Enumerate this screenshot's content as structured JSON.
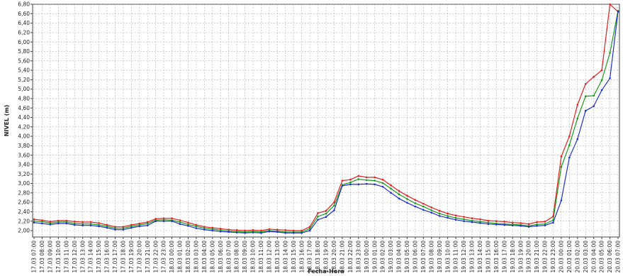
{
  "chart_data": {
    "type": "line",
    "title": "",
    "xlabel": "Fecha-Hora",
    "ylabel": "NIVEL (m)",
    "ylim": [
      2.0,
      6.8
    ],
    "yticks": [
      "2,00",
      "2,20",
      "2,40",
      "2,60",
      "2,80",
      "3,00",
      "3,20",
      "3,40",
      "3,60",
      "3,80",
      "4,00",
      "4,20",
      "4,40",
      "4,60",
      "4,80",
      "5,00",
      "5,20",
      "5,40",
      "5,60",
      "5,80",
      "6,00",
      "6,20",
      "6,40",
      "6,60",
      "6,80"
    ],
    "grid": true,
    "legend": "none",
    "categories": [
      "17.03 07:00",
      "17.03 08:00",
      "17.03 09:00",
      "17.03 10:00",
      "17.03 11:00",
      "17.03 12:00",
      "17.03 13:00",
      "17.03 14:00",
      "17.03 15:00",
      "17.03 16:00",
      "17.03 17:00",
      "17.03 18:00",
      "17.03 19:00",
      "17.03 20:00",
      "17.03 21:00",
      "17.03 22:00",
      "17.03 23:00",
      "18.03 00:00",
      "18.03 01:00",
      "18.03 02:00",
      "18.03 03:00",
      "18.03 04:00",
      "18.03 05:00",
      "18.03 06:00",
      "18.03 07:00",
      "18.03 08:00",
      "18.03 09:00",
      "18.03 10:00",
      "18.03 11:00",
      "18.03 12:00",
      "18.03 13:00",
      "18.03 14:00",
      "18.03 15:00",
      "18.03 16:00",
      "18.03 17:00",
      "18.03 18:00",
      "18.03 19:00",
      "18.03 20:00",
      "18.03 21:00",
      "18.03 22:00",
      "18.03 23:00",
      "19.03 00:00",
      "19.03 01:00",
      "19.03 02:00",
      "19.03 03:00",
      "19.03 04:00",
      "19.03 05:00",
      "19.03 06:00",
      "19.03 07:00",
      "19.03 08:00",
      "19.03 09:00",
      "19.03 10:00",
      "19.03 11:00",
      "19.03 12:00",
      "19.03 13:00",
      "19.03 14:00",
      "19.03 15:00",
      "19.03 16:00",
      "19.03 17:00",
      "19.03 18:00",
      "19.03 19:00",
      "19.03 20:00",
      "19.03 21:00",
      "19.03 22:00",
      "19.03 23:00",
      "20.03 00:00",
      "20.03 01:00",
      "20.03 02:00",
      "20.03 03:00",
      "20.03 04:00",
      "20.03 05:00",
      "20.03 06:00",
      "20.03 07:00"
    ],
    "series": [
      {
        "color": "#e02020",
        "values": [
          2.24,
          2.22,
          2.19,
          2.21,
          2.21,
          2.19,
          2.18,
          2.18,
          2.16,
          2.12,
          2.08,
          2.08,
          2.12,
          2.15,
          2.18,
          2.25,
          2.26,
          2.26,
          2.22,
          2.17,
          2.12,
          2.08,
          2.06,
          2.04,
          2.02,
          2.01,
          2.0,
          2.01,
          2.0,
          2.03,
          2.02,
          2.01,
          2.0,
          2.0,
          2.08,
          2.37,
          2.42,
          2.6,
          3.06,
          3.08,
          3.16,
          3.13,
          3.13,
          3.08,
          2.96,
          2.84,
          2.74,
          2.65,
          2.57,
          2.49,
          2.42,
          2.36,
          2.32,
          2.29,
          2.26,
          2.24,
          2.21,
          2.2,
          2.19,
          2.17,
          2.16,
          2.14,
          2.18,
          2.19,
          2.3,
          3.57,
          4.0,
          4.67,
          5.11,
          5.26,
          5.4,
          6.8,
          6.64
        ]
      },
      {
        "color": "#1a9a1a",
        "values": [
          2.2,
          2.19,
          2.16,
          2.18,
          2.18,
          2.15,
          2.14,
          2.14,
          2.12,
          2.09,
          2.05,
          2.05,
          2.09,
          2.12,
          2.15,
          2.22,
          2.23,
          2.22,
          2.18,
          2.13,
          2.09,
          2.05,
          2.03,
          2.01,
          1.99,
          1.98,
          1.97,
          1.98,
          1.97,
          2.0,
          1.99,
          1.97,
          1.97,
          1.97,
          2.04,
          2.3,
          2.36,
          2.53,
          2.97,
          3.02,
          3.09,
          3.07,
          3.06,
          3.01,
          2.89,
          2.77,
          2.67,
          2.58,
          2.51,
          2.43,
          2.36,
          2.31,
          2.27,
          2.24,
          2.21,
          2.19,
          2.17,
          2.15,
          2.14,
          2.13,
          2.12,
          2.1,
          2.13,
          2.14,
          2.22,
          3.35,
          3.81,
          4.38,
          4.85,
          4.86,
          5.19,
          5.77,
          6.66
        ]
      },
      {
        "color": "#2030d0",
        "values": [
          2.17,
          2.15,
          2.13,
          2.15,
          2.15,
          2.12,
          2.11,
          2.11,
          2.09,
          2.06,
          2.02,
          2.02,
          2.06,
          2.09,
          2.11,
          2.2,
          2.2,
          2.2,
          2.14,
          2.1,
          2.05,
          2.02,
          2.0,
          1.98,
          1.97,
          1.96,
          1.95,
          1.96,
          1.95,
          1.98,
          1.97,
          1.95,
          1.95,
          1.95,
          2.0,
          2.23,
          2.29,
          2.43,
          2.95,
          2.98,
          2.98,
          2.99,
          2.98,
          2.93,
          2.8,
          2.68,
          2.59,
          2.51,
          2.44,
          2.38,
          2.31,
          2.27,
          2.23,
          2.2,
          2.18,
          2.16,
          2.14,
          2.13,
          2.12,
          2.11,
          2.1,
          2.08,
          2.1,
          2.11,
          2.17,
          2.64,
          3.55,
          3.94,
          4.54,
          4.64,
          4.98,
          5.23,
          6.65
        ]
      }
    ]
  }
}
